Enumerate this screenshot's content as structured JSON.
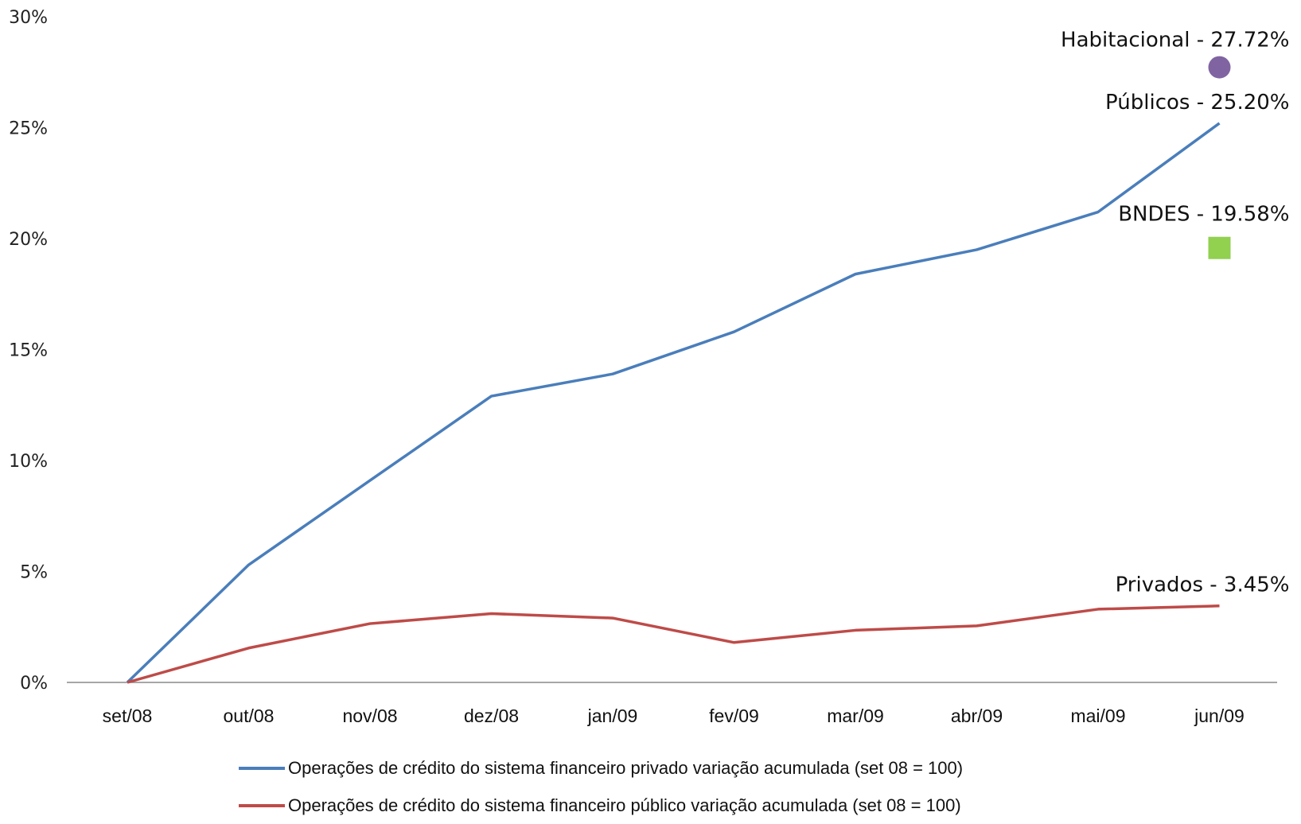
{
  "chart_data": {
    "type": "line",
    "categories": [
      "set/08",
      "out/08",
      "nov/08",
      "dez/08",
      "jan/09",
      "fev/09",
      "mar/09",
      "abr/09",
      "mai/09",
      "jun/09"
    ],
    "ylim": [
      0,
      30
    ],
    "yticks": [
      "0%",
      "5%",
      "10%",
      "15%",
      "20%",
      "25%",
      "30%"
    ],
    "grid": false,
    "legend_position": "bottom",
    "series": [
      {
        "name": "Operações de crédito do sistema financeiro privado variação acumulada (set 08 = 100)",
        "color": "#4a7ebb",
        "values": [
          0,
          5.3,
          9.1,
          12.9,
          13.9,
          15.8,
          18.4,
          19.5,
          21.2,
          25.2
        ]
      },
      {
        "name": "Operações de crédito do sistema financeiro público variação acumulada (set 08 = 100)",
        "color": "#be4b48",
        "values": [
          0,
          1.55,
          2.65,
          3.1,
          2.9,
          1.8,
          2.35,
          2.55,
          3.3,
          3.45
        ]
      }
    ],
    "annotations": [
      {
        "text": "Habitacional - 27.72%",
        "x": "jun/09",
        "y": 27.72,
        "marker": "circle",
        "color": "#8064a2"
      },
      {
        "text": "Públicos - 25.20%",
        "x": "jun/09",
        "y": 25.2,
        "marker": "none"
      },
      {
        "text": "BNDES - 19.58%",
        "x": "jun/09",
        "y": 19.58,
        "marker": "square",
        "color": "#92d050"
      },
      {
        "text": "Privados - 3.45%",
        "x": "jun/09",
        "y": 3.45,
        "marker": "none"
      }
    ]
  }
}
